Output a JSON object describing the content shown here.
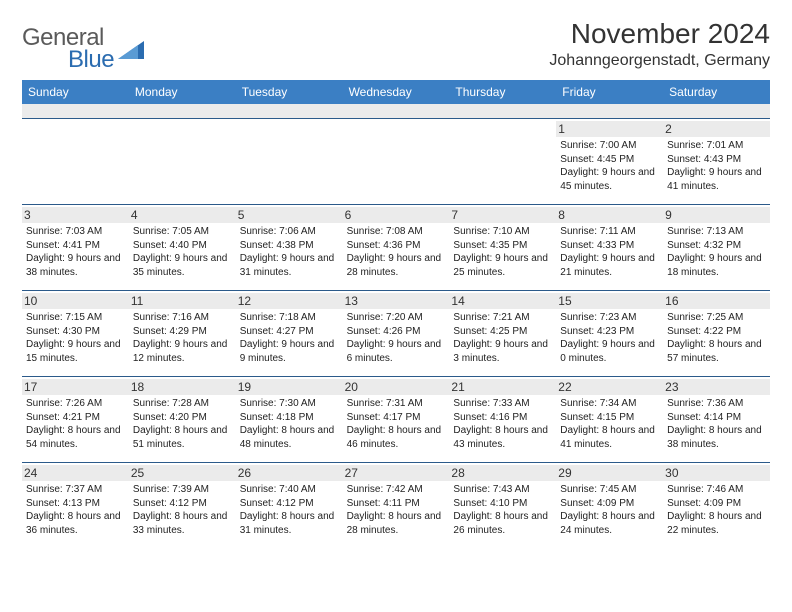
{
  "logo": {
    "word1": "General",
    "word2": "Blue"
  },
  "title": "November 2024",
  "location": "Johanngeorgenstadt, Germany",
  "header_bg": "#3b7fc4",
  "spacer_bg": "#ebebeb",
  "border_color": "#2b5a8a",
  "daynum_bg": "#ebebeb",
  "text_color": "#222222",
  "days_of_week": [
    "Sunday",
    "Monday",
    "Tuesday",
    "Wednesday",
    "Thursday",
    "Friday",
    "Saturday"
  ],
  "weeks": [
    [
      {
        "n": "",
        "sr": "",
        "ss": "",
        "dl": ""
      },
      {
        "n": "",
        "sr": "",
        "ss": "",
        "dl": ""
      },
      {
        "n": "",
        "sr": "",
        "ss": "",
        "dl": ""
      },
      {
        "n": "",
        "sr": "",
        "ss": "",
        "dl": ""
      },
      {
        "n": "",
        "sr": "",
        "ss": "",
        "dl": ""
      },
      {
        "n": "1",
        "sr": "Sunrise: 7:00 AM",
        "ss": "Sunset: 4:45 PM",
        "dl": "Daylight: 9 hours and 45 minutes."
      },
      {
        "n": "2",
        "sr": "Sunrise: 7:01 AM",
        "ss": "Sunset: 4:43 PM",
        "dl": "Daylight: 9 hours and 41 minutes."
      }
    ],
    [
      {
        "n": "3",
        "sr": "Sunrise: 7:03 AM",
        "ss": "Sunset: 4:41 PM",
        "dl": "Daylight: 9 hours and 38 minutes."
      },
      {
        "n": "4",
        "sr": "Sunrise: 7:05 AM",
        "ss": "Sunset: 4:40 PM",
        "dl": "Daylight: 9 hours and 35 minutes."
      },
      {
        "n": "5",
        "sr": "Sunrise: 7:06 AM",
        "ss": "Sunset: 4:38 PM",
        "dl": "Daylight: 9 hours and 31 minutes."
      },
      {
        "n": "6",
        "sr": "Sunrise: 7:08 AM",
        "ss": "Sunset: 4:36 PM",
        "dl": "Daylight: 9 hours and 28 minutes."
      },
      {
        "n": "7",
        "sr": "Sunrise: 7:10 AM",
        "ss": "Sunset: 4:35 PM",
        "dl": "Daylight: 9 hours and 25 minutes."
      },
      {
        "n": "8",
        "sr": "Sunrise: 7:11 AM",
        "ss": "Sunset: 4:33 PM",
        "dl": "Daylight: 9 hours and 21 minutes."
      },
      {
        "n": "9",
        "sr": "Sunrise: 7:13 AM",
        "ss": "Sunset: 4:32 PM",
        "dl": "Daylight: 9 hours and 18 minutes."
      }
    ],
    [
      {
        "n": "10",
        "sr": "Sunrise: 7:15 AM",
        "ss": "Sunset: 4:30 PM",
        "dl": "Daylight: 9 hours and 15 minutes."
      },
      {
        "n": "11",
        "sr": "Sunrise: 7:16 AM",
        "ss": "Sunset: 4:29 PM",
        "dl": "Daylight: 9 hours and 12 minutes."
      },
      {
        "n": "12",
        "sr": "Sunrise: 7:18 AM",
        "ss": "Sunset: 4:27 PM",
        "dl": "Daylight: 9 hours and 9 minutes."
      },
      {
        "n": "13",
        "sr": "Sunrise: 7:20 AM",
        "ss": "Sunset: 4:26 PM",
        "dl": "Daylight: 9 hours and 6 minutes."
      },
      {
        "n": "14",
        "sr": "Sunrise: 7:21 AM",
        "ss": "Sunset: 4:25 PM",
        "dl": "Daylight: 9 hours and 3 minutes."
      },
      {
        "n": "15",
        "sr": "Sunrise: 7:23 AM",
        "ss": "Sunset: 4:23 PM",
        "dl": "Daylight: 9 hours and 0 minutes."
      },
      {
        "n": "16",
        "sr": "Sunrise: 7:25 AM",
        "ss": "Sunset: 4:22 PM",
        "dl": "Daylight: 8 hours and 57 minutes."
      }
    ],
    [
      {
        "n": "17",
        "sr": "Sunrise: 7:26 AM",
        "ss": "Sunset: 4:21 PM",
        "dl": "Daylight: 8 hours and 54 minutes."
      },
      {
        "n": "18",
        "sr": "Sunrise: 7:28 AM",
        "ss": "Sunset: 4:20 PM",
        "dl": "Daylight: 8 hours and 51 minutes."
      },
      {
        "n": "19",
        "sr": "Sunrise: 7:30 AM",
        "ss": "Sunset: 4:18 PM",
        "dl": "Daylight: 8 hours and 48 minutes."
      },
      {
        "n": "20",
        "sr": "Sunrise: 7:31 AM",
        "ss": "Sunset: 4:17 PM",
        "dl": "Daylight: 8 hours and 46 minutes."
      },
      {
        "n": "21",
        "sr": "Sunrise: 7:33 AM",
        "ss": "Sunset: 4:16 PM",
        "dl": "Daylight: 8 hours and 43 minutes."
      },
      {
        "n": "22",
        "sr": "Sunrise: 7:34 AM",
        "ss": "Sunset: 4:15 PM",
        "dl": "Daylight: 8 hours and 41 minutes."
      },
      {
        "n": "23",
        "sr": "Sunrise: 7:36 AM",
        "ss": "Sunset: 4:14 PM",
        "dl": "Daylight: 8 hours and 38 minutes."
      }
    ],
    [
      {
        "n": "24",
        "sr": "Sunrise: 7:37 AM",
        "ss": "Sunset: 4:13 PM",
        "dl": "Daylight: 8 hours and 36 minutes."
      },
      {
        "n": "25",
        "sr": "Sunrise: 7:39 AM",
        "ss": "Sunset: 4:12 PM",
        "dl": "Daylight: 8 hours and 33 minutes."
      },
      {
        "n": "26",
        "sr": "Sunrise: 7:40 AM",
        "ss": "Sunset: 4:12 PM",
        "dl": "Daylight: 8 hours and 31 minutes."
      },
      {
        "n": "27",
        "sr": "Sunrise: 7:42 AM",
        "ss": "Sunset: 4:11 PM",
        "dl": "Daylight: 8 hours and 28 minutes."
      },
      {
        "n": "28",
        "sr": "Sunrise: 7:43 AM",
        "ss": "Sunset: 4:10 PM",
        "dl": "Daylight: 8 hours and 26 minutes."
      },
      {
        "n": "29",
        "sr": "Sunrise: 7:45 AM",
        "ss": "Sunset: 4:09 PM",
        "dl": "Daylight: 8 hours and 24 minutes."
      },
      {
        "n": "30",
        "sr": "Sunrise: 7:46 AM",
        "ss": "Sunset: 4:09 PM",
        "dl": "Daylight: 8 hours and 22 minutes."
      }
    ]
  ]
}
